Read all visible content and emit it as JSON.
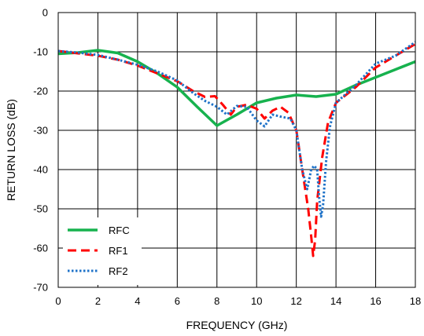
{
  "chart_data": {
    "type": "line",
    "title": "",
    "xlabel": "FREQUENCY (GHz)",
    "ylabel": "RETURN LOSS (dB)",
    "xlim": [
      0,
      18
    ],
    "ylim": [
      -70,
      0
    ],
    "xticks": [
      0,
      2,
      4,
      6,
      8,
      10,
      12,
      14,
      16,
      18
    ],
    "yticks": [
      0,
      -10,
      -20,
      -30,
      -40,
      -50,
      -60,
      -70
    ],
    "grid": true,
    "legend": "bottom-left",
    "series": [
      {
        "name": "RFC",
        "color": "#17b24e",
        "style": "solid",
        "points": [
          [
            0,
            -10.5
          ],
          [
            1,
            -10.2
          ],
          [
            2,
            -9.6
          ],
          [
            3,
            -10.3
          ],
          [
            4,
            -12.5
          ],
          [
            5,
            -15.5
          ],
          [
            6,
            -19
          ],
          [
            7,
            -24
          ],
          [
            8,
            -28.8
          ],
          [
            9,
            -26
          ],
          [
            10,
            -23
          ],
          [
            11,
            -21.8
          ],
          [
            12,
            -21
          ],
          [
            13,
            -21.4
          ],
          [
            14,
            -20.8
          ],
          [
            15,
            -18.5
          ],
          [
            16,
            -16.5
          ],
          [
            17,
            -14.5
          ],
          [
            18,
            -12.5
          ]
        ]
      },
      {
        "name": "RF1",
        "color": "#ff0000",
        "style": "dashed",
        "points": [
          [
            0,
            -9.8
          ],
          [
            1,
            -10.4
          ],
          [
            2,
            -11
          ],
          [
            3,
            -12
          ],
          [
            4,
            -13.5
          ],
          [
            5,
            -15.5
          ],
          [
            6,
            -17.5
          ],
          [
            6.8,
            -20
          ],
          [
            7.4,
            -21.5
          ],
          [
            7.9,
            -21.3
          ],
          [
            8.3,
            -23.5
          ],
          [
            8.7,
            -26
          ],
          [
            9,
            -24
          ],
          [
            9.5,
            -23.5
          ],
          [
            10,
            -24.5
          ],
          [
            10.4,
            -27
          ],
          [
            10.8,
            -25
          ],
          [
            11.2,
            -24
          ],
          [
            11.6,
            -25.5
          ],
          [
            12,
            -30
          ],
          [
            12.3,
            -40
          ],
          [
            12.6,
            -50
          ],
          [
            12.75,
            -57
          ],
          [
            12.85,
            -62
          ],
          [
            12.95,
            -58
          ],
          [
            13.05,
            -48
          ],
          [
            13.3,
            -37
          ],
          [
            13.6,
            -28
          ],
          [
            14,
            -23
          ],
          [
            15,
            -19
          ],
          [
            16,
            -14
          ],
          [
            17,
            -11
          ],
          [
            18,
            -8
          ]
        ]
      },
      {
        "name": "RF2",
        "color": "#1e72c8",
        "style": "dotted",
        "points": [
          [
            0,
            -9.8
          ],
          [
            1,
            -10.2
          ],
          [
            2,
            -10.8
          ],
          [
            3,
            -12
          ],
          [
            4,
            -13.3
          ],
          [
            5,
            -15
          ],
          [
            6,
            -17.3
          ],
          [
            6.8,
            -20.5
          ],
          [
            7.4,
            -22.5
          ],
          [
            8,
            -24
          ],
          [
            8.5,
            -26
          ],
          [
            9,
            -23.8
          ],
          [
            9.5,
            -24
          ],
          [
            10,
            -27.5
          ],
          [
            10.4,
            -29
          ],
          [
            10.8,
            -26
          ],
          [
            11.2,
            -26.5
          ],
          [
            11.7,
            -27
          ],
          [
            12,
            -30
          ],
          [
            12.3,
            -40
          ],
          [
            12.55,
            -45
          ],
          [
            12.75,
            -40
          ],
          [
            12.9,
            -39
          ],
          [
            13.05,
            -40
          ],
          [
            13.15,
            -47
          ],
          [
            13.25,
            -52
          ],
          [
            13.35,
            -49
          ],
          [
            13.5,
            -38
          ],
          [
            13.7,
            -29
          ],
          [
            14,
            -23
          ],
          [
            15,
            -18.5
          ],
          [
            16,
            -13
          ],
          [
            17,
            -11
          ],
          [
            18,
            -7.5
          ]
        ]
      }
    ]
  }
}
